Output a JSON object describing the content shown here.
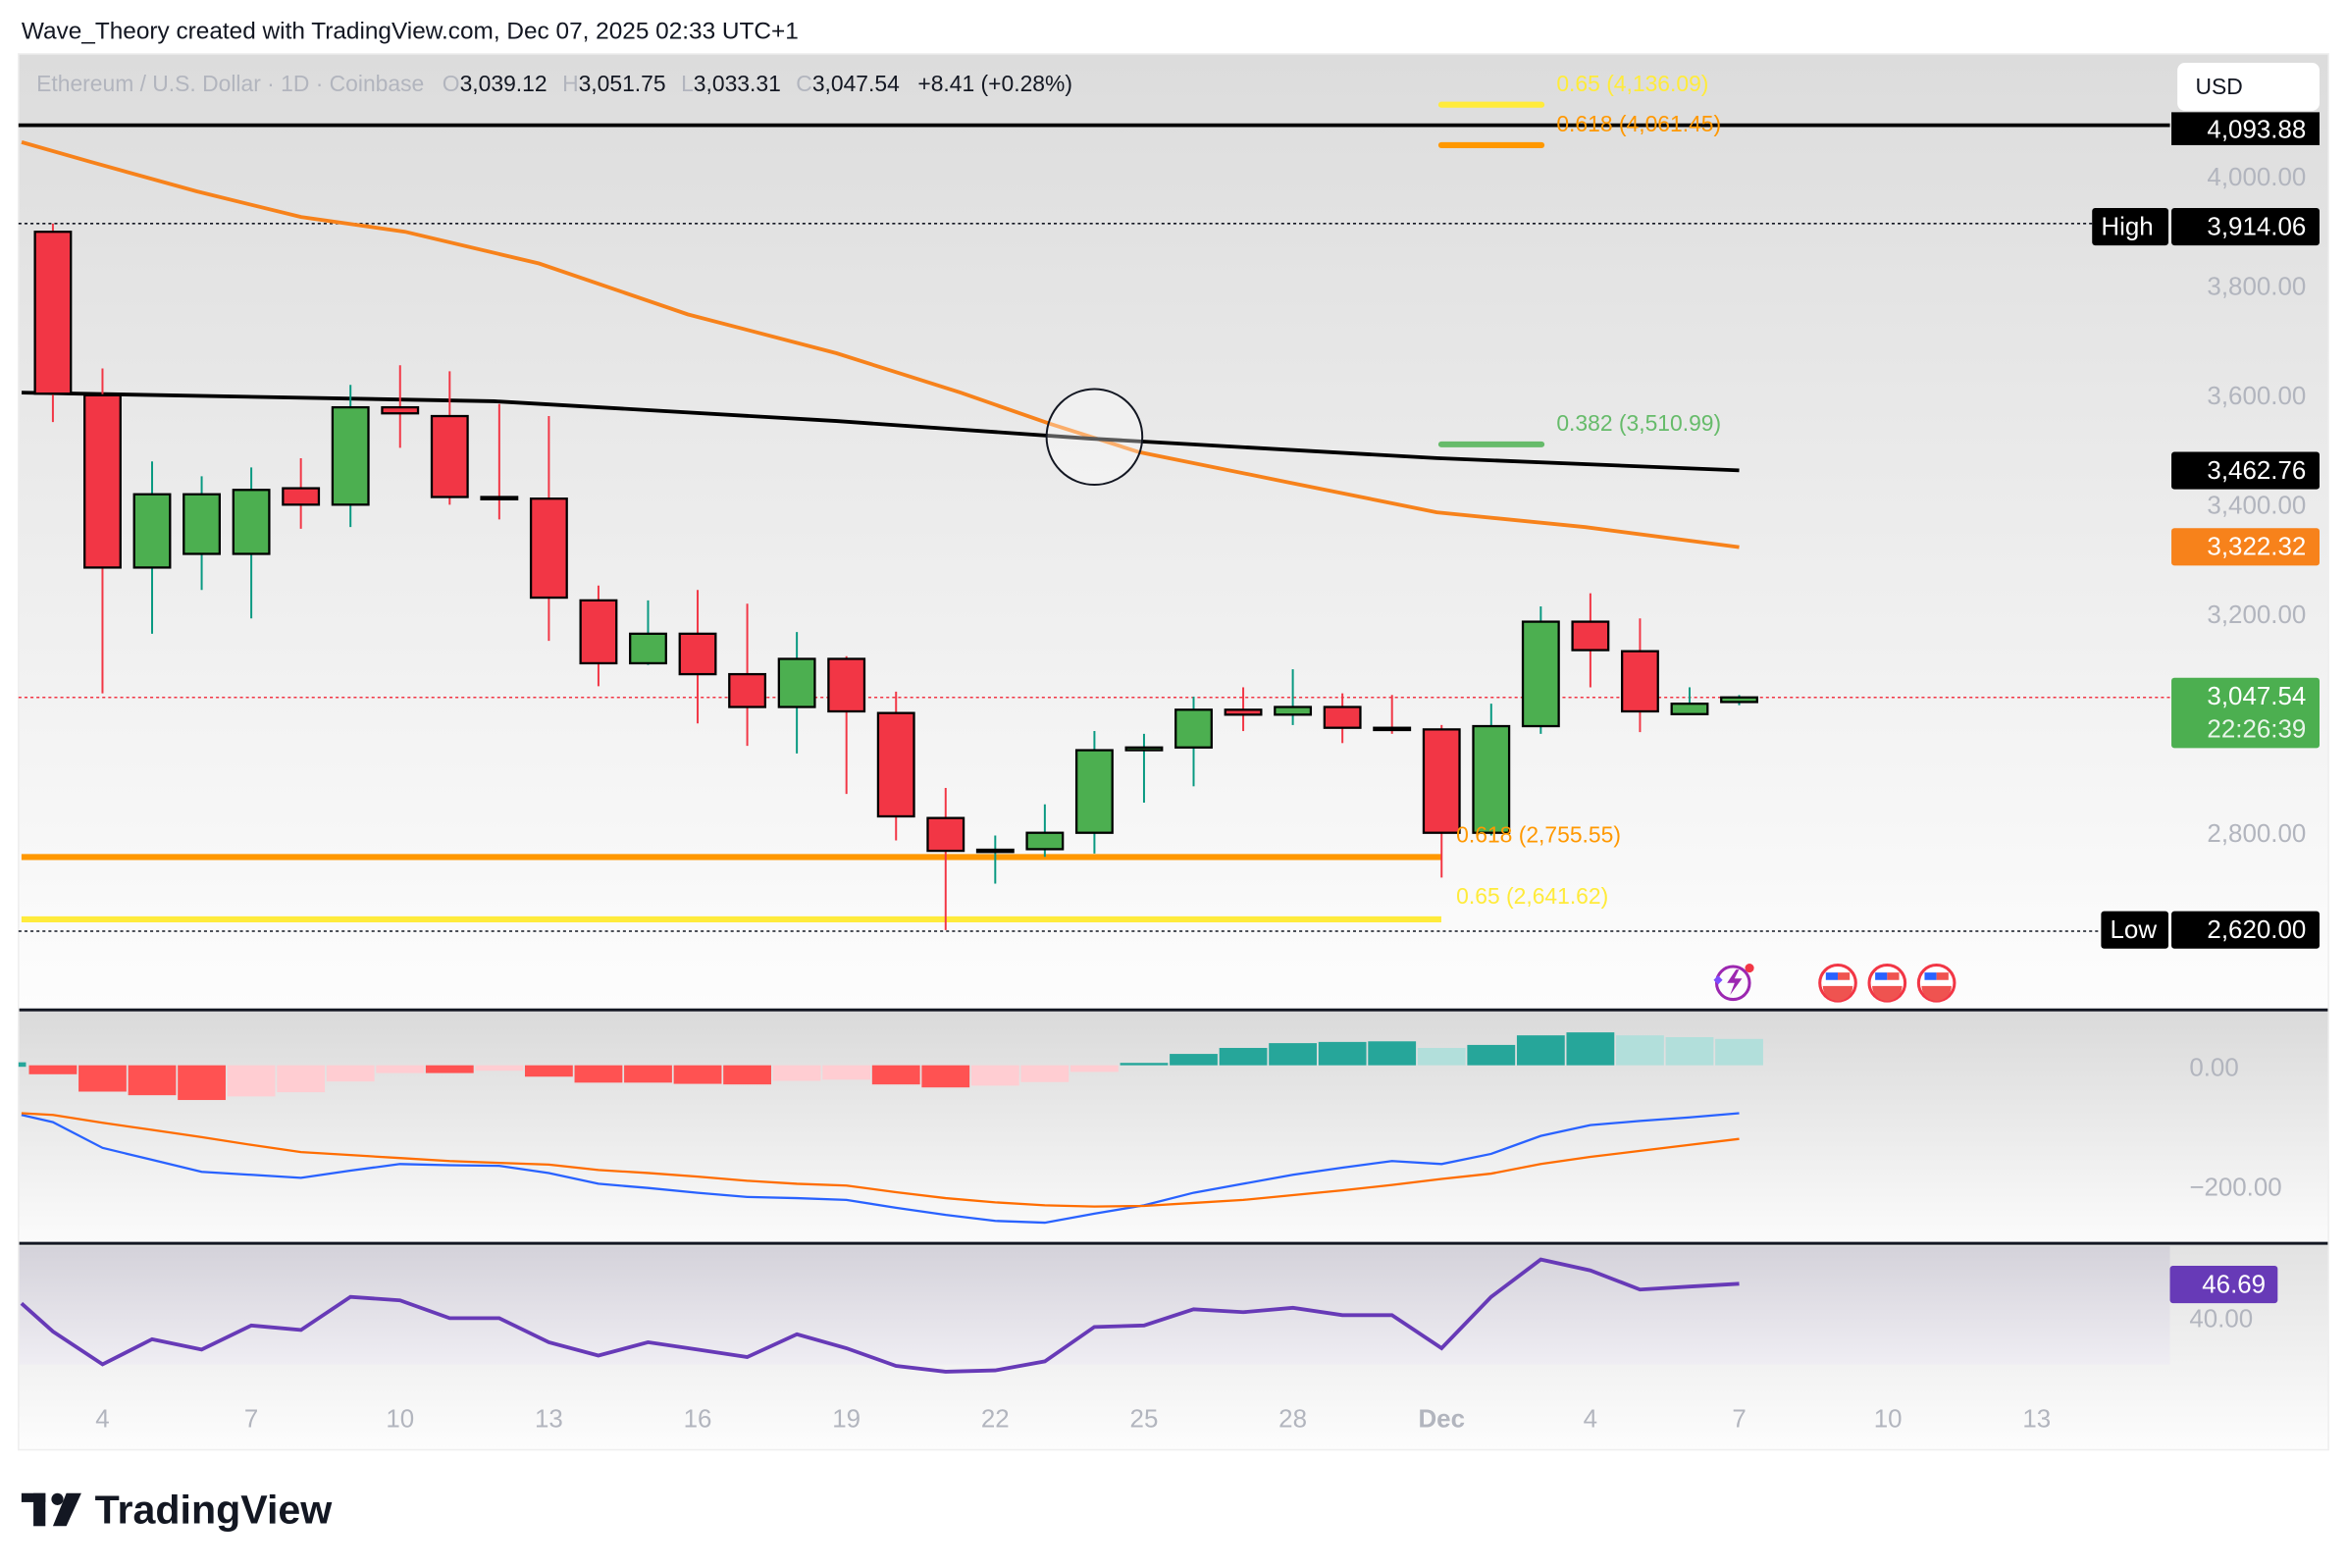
{
  "header": {
    "attribution": "Wave_Theory created with TradingView.com, Dec 07, 2025 02:33 UTC+1"
  },
  "legend": {
    "symbol": "Ethereum / U.S. Dollar · 1D · Coinbase",
    "o_label": "O",
    "open": "3,039.12",
    "h_label": "H",
    "high": "3,051.75",
    "l_label": "L",
    "low": "3,033.31",
    "c_label": "C",
    "close": "3,047.54",
    "change": "+8.41 (+0.28%)"
  },
  "currency_button": "USD",
  "colors": {
    "up": "#4caf50",
    "down": "#f23645",
    "up_wick": "#089981",
    "down_wick": "#f23645",
    "ma_fast": "#f7821b",
    "ma_slow": "#000000",
    "macd": "#2962ff",
    "signal": "#ff6d00",
    "hist_up_strong": "#26a69a",
    "hist_up_weak": "#b2dfdb",
    "hist_down_strong": "#ff5252",
    "hist_down_weak": "#ffcdd2",
    "rsi": "#673ab7",
    "fib_618": "#ff9800",
    "fib_65": "#ffeb3b",
    "fib_382": "#66bb6a"
  },
  "price_labels": {
    "resistance": "4,093.88",
    "high_tag": "High",
    "high": "3,914.06",
    "ma_slow": "3,462.76",
    "ma_fast": "3,322.32",
    "last": "3,047.54",
    "countdown": "22:26:39",
    "low_tag": "Low",
    "low": "2,620.00"
  },
  "fib_labels": {
    "top_65": "0.65 (4,136.09)",
    "top_618": "0.618 (4,061.45)",
    "mid_382": "0.382 (3,510.99)",
    "bot_618": "0.618 (2,755.55)",
    "bot_65": "0.65 (2,641.62)"
  },
  "macd_axis": [
    "0.00",
    "−200.00"
  ],
  "rsi_axis": {
    "value": "46.69",
    "tick": "40.00"
  },
  "chart_data": {
    "type": "candlestick",
    "title": "Ethereum / U.S. Dollar · 1D · Coinbase",
    "first_date": "Nov 3, 2025",
    "price_ticks": [
      4000,
      3800,
      3600,
      3400,
      3200,
      2800
    ],
    "price_tick_labels": [
      "4,000.00",
      "3,800.00",
      "3,600.00",
      "3,400.00",
      "3,200.00",
      "2,800.00"
    ],
    "x_ticks": [
      1,
      4,
      7,
      10,
      13,
      16,
      19,
      22,
      25,
      28,
      31,
      34,
      37,
      40
    ],
    "x_tick_labels": [
      "4",
      "7",
      "10",
      "13",
      "16",
      "19",
      "22",
      "25",
      "28",
      "Dec",
      "4",
      "7",
      "10",
      "13"
    ],
    "ohlc": [
      [
        3899,
        3914,
        3551,
        3603
      ],
      [
        3600,
        3649,
        3055,
        3285
      ],
      [
        3285,
        3479,
        3164,
        3419
      ],
      [
        3310,
        3452,
        3244,
        3419
      ],
      [
        3310,
        3468,
        3192,
        3427
      ],
      [
        3430,
        3485,
        3356,
        3400
      ],
      [
        3400,
        3619,
        3359,
        3578
      ],
      [
        3578,
        3655,
        3504,
        3567
      ],
      [
        3562,
        3644,
        3400,
        3414
      ],
      [
        3414,
        3584,
        3373,
        3412
      ],
      [
        3411,
        3562,
        3151,
        3230
      ],
      [
        3225,
        3252,
        3068,
        3110
      ],
      [
        3110,
        3225,
        3107,
        3164
      ],
      [
        3164,
        3244,
        3000,
        3090
      ],
      [
        3090,
        3219,
        2959,
        3030
      ],
      [
        3030,
        3167,
        2945,
        3118
      ],
      [
        3118,
        3123,
        2871,
        3022
      ],
      [
        3019,
        3058,
        2786,
        2830
      ],
      [
        2827,
        2882,
        2622,
        2767
      ],
      [
        2767,
        2795,
        2707,
        2769
      ],
      [
        2770,
        2852,
        2756,
        2800
      ],
      [
        2800,
        2986,
        2762,
        2951
      ],
      [
        2951,
        2981,
        2855,
        2956
      ],
      [
        2956,
        3049,
        2885,
        3025
      ],
      [
        3025,
        3066,
        2986,
        3016
      ],
      [
        3016,
        3099,
        2997,
        3030
      ],
      [
        3030,
        3055,
        2964,
        2992
      ],
      [
        2992,
        3052,
        2981,
        2991
      ],
      [
        2989,
        2997,
        2718,
        2800
      ],
      [
        2800,
        3036,
        2795,
        2995
      ],
      [
        2995,
        3214,
        2981,
        3186
      ],
      [
        3186,
        3238,
        3066,
        3134
      ],
      [
        3132,
        3192,
        2984,
        3022
      ],
      [
        3017,
        3066,
        3016,
        3036
      ],
      [
        3039.12,
        3051.75,
        3033.31,
        3047.54
      ]
    ],
    "ma_slow": [
      [
        -0.63,
        3605
      ],
      [
        8.9,
        3589
      ],
      [
        15.8,
        3553
      ],
      [
        20.9,
        3521
      ],
      [
        27.9,
        3485
      ],
      [
        34,
        3462.76
      ]
    ],
    "ma_fast": [
      [
        -0.63,
        4063
      ],
      [
        0.75,
        4027
      ],
      [
        2.9,
        3973
      ],
      [
        5,
        3926
      ],
      [
        7.1,
        3899
      ],
      [
        9.8,
        3841
      ],
      [
        12.8,
        3748
      ],
      [
        15.8,
        3677
      ],
      [
        18.3,
        3605
      ],
      [
        20.1,
        3548
      ],
      [
        21.9,
        3496
      ],
      [
        24.9,
        3441
      ],
      [
        27.9,
        3386
      ],
      [
        30.9,
        3359
      ],
      [
        34,
        3322.32
      ]
    ],
    "levels": {
      "resistance": 4093.88,
      "high": 3914.06,
      "low": 2620.0,
      "fib_bot_618": 2755.55,
      "fib_bot_65": 2641.62,
      "fib_top_65": 4136.09,
      "fib_top_618": 4061.45,
      "fib_382": 3510.99,
      "last": 3047.54
    },
    "cross_marker_day": 21,
    "macd_hist": [
      -15,
      -44,
      -50,
      -58,
      -52,
      -45,
      -27,
      -13,
      -13,
      -9,
      -19,
      -29,
      -29,
      -31,
      -32,
      -26,
      -24,
      -32,
      -37,
      -34,
      -28,
      -11,
      4,
      19,
      29,
      37,
      39,
      40,
      29,
      34,
      50,
      55,
      50,
      47,
      44
    ],
    "macd_line": [
      -95,
      -138,
      -158,
      -178,
      -183,
      -188,
      -176,
      -165,
      -167,
      -168,
      -180,
      -198,
      -205,
      -213,
      -220,
      -222,
      -225,
      -238,
      -250,
      -260,
      -263,
      -248,
      -234,
      -213,
      -198,
      -183,
      -171,
      -160,
      -165,
      -148,
      -118,
      -100,
      -93,
      -87,
      -80
    ],
    "signal_line": [
      -83,
      -96,
      -108,
      -120,
      -133,
      -145,
      -150,
      -155,
      -160,
      -163,
      -166,
      -175,
      -180,
      -186,
      -193,
      -198,
      -201,
      -212,
      -222,
      -229,
      -234,
      -236,
      -235,
      -230,
      -225,
      -217,
      -209,
      -200,
      -190,
      -181,
      -165,
      -153,
      -143,
      -133,
      -123
    ],
    "rsi": [
      37.0,
      30.3,
      35.4,
      33.3,
      38.2,
      37.3,
      44.0,
      43.3,
      39.7,
      39.7,
      34.8,
      32.1,
      34.8,
      33.3,
      31.8,
      36.4,
      33.6,
      30.0,
      28.8,
      29.1,
      30.9,
      37.9,
      38.2,
      41.5,
      40.9,
      41.8,
      40.3,
      40.3,
      33.6,
      44.0,
      51.6,
      49.4,
      45.5,
      46.1,
      46.69
    ]
  },
  "footer": {
    "logo_text": "TradingView"
  }
}
